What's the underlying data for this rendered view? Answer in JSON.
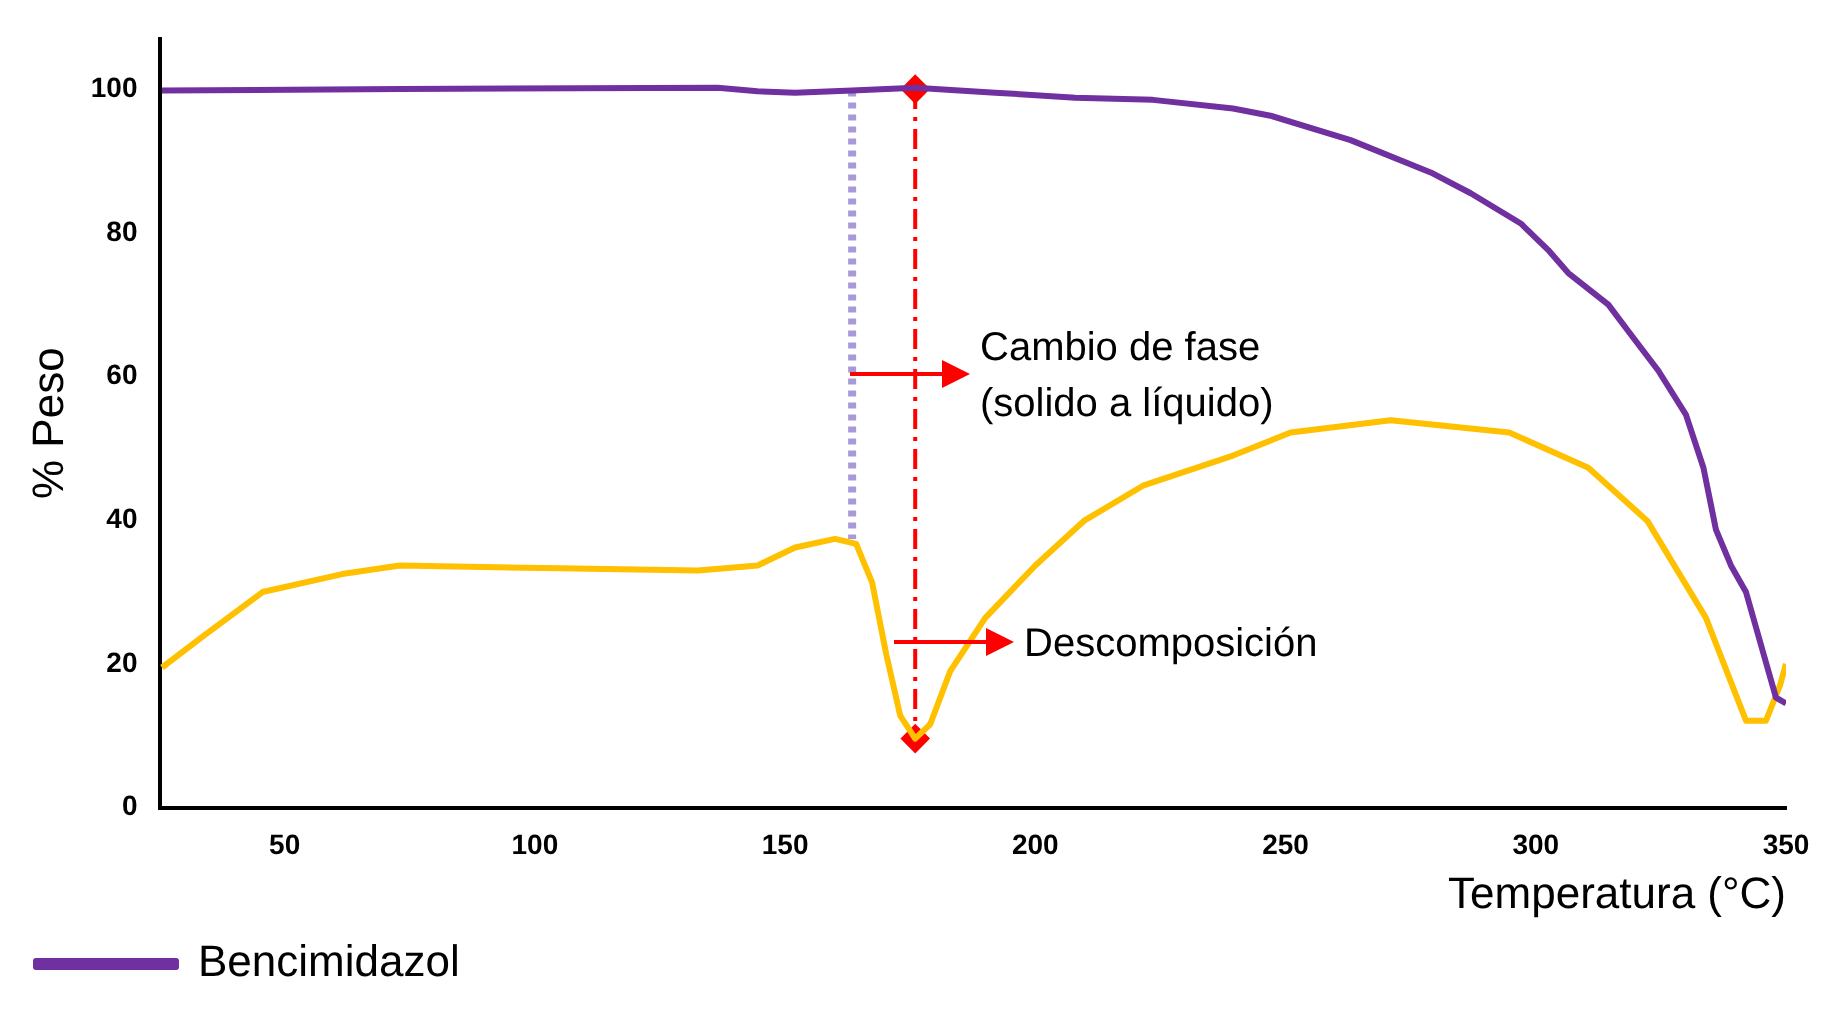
{
  "chart_data": {
    "type": "line",
    "xlabel": "Temperatura (°C)",
    "ylabel": "% Peso",
    "xlim": [
      25,
      350
    ],
    "xticks": [
      50,
      100,
      150,
      200,
      250,
      300,
      350
    ],
    "ylim": [
      0,
      107
    ],
    "yticks": [
      0,
      20,
      40,
      60,
      80,
      100
    ],
    "grid": false,
    "legend": "bottom left",
    "marker": "none",
    "line_style": "solid",
    "series": [
      {
        "name": "Bencimidazol",
        "color": "#7030a0",
        "x": [
          25.5,
          73,
          136.5,
          144.5,
          152,
          163.4,
          176,
          192,
          208,
          223.5,
          239.5,
          247,
          263,
          279,
          287,
          297,
          302.5,
          306.5,
          314.5,
          318.5,
          324.5,
          330,
          333.5,
          336,
          339,
          342,
          344,
          346,
          348,
          350
        ],
        "values": [
          99.8,
          100,
          100.2,
          99.7,
          99.5,
          99.8,
          100.2,
          99.5,
          98.8,
          98.5,
          97.3,
          96.3,
          92.9,
          88.4,
          85.5,
          81.3,
          77.6,
          74.4,
          70,
          66.3,
          60.8,
          54.7,
          47.3,
          38.7,
          33.7,
          30,
          25.1,
          20.2,
          15.3,
          14.5
        ]
      },
      {
        "color": "#ffc000",
        "x": [
          25.5,
          33.8,
          45.6,
          61.5,
          73,
          105,
          132.6,
          144.5,
          152,
          160,
          164.2,
          167.4,
          170.2,
          173,
          176,
          179,
          183,
          190,
          200,
          209.7,
          221.5,
          239.5,
          251,
          271,
          294.7,
          310.5,
          322.3,
          334,
          342,
          346,
          348.8,
          350
        ],
        "values": [
          19.5,
          23.9,
          30,
          32.5,
          33.7,
          33.3,
          33,
          33.7,
          36.2,
          37.4,
          36.7,
          31.3,
          21.4,
          12.8,
          9.6,
          11.6,
          19,
          26.4,
          33.7,
          39.9,
          44.8,
          49,
          52.2,
          53.9,
          52.2,
          47.3,
          39.9,
          26.4,
          12.1,
          12.1,
          17,
          20
        ]
      },
      {
        "color": "#a899d8",
        "line_style": "dotted",
        "x": [
          163.4,
          163.4
        ],
        "values": [
          99.8,
          37.4
        ]
      },
      {
        "color": "#ff0000",
        "line_style": "dashed",
        "marker": "diamond",
        "x": [
          176,
          176
        ],
        "values": [
          100,
          9.6
        ]
      }
    ],
    "annotations": [
      "Cambio de fase\n(solido a líquido)",
      "Descomposición"
    ]
  }
}
